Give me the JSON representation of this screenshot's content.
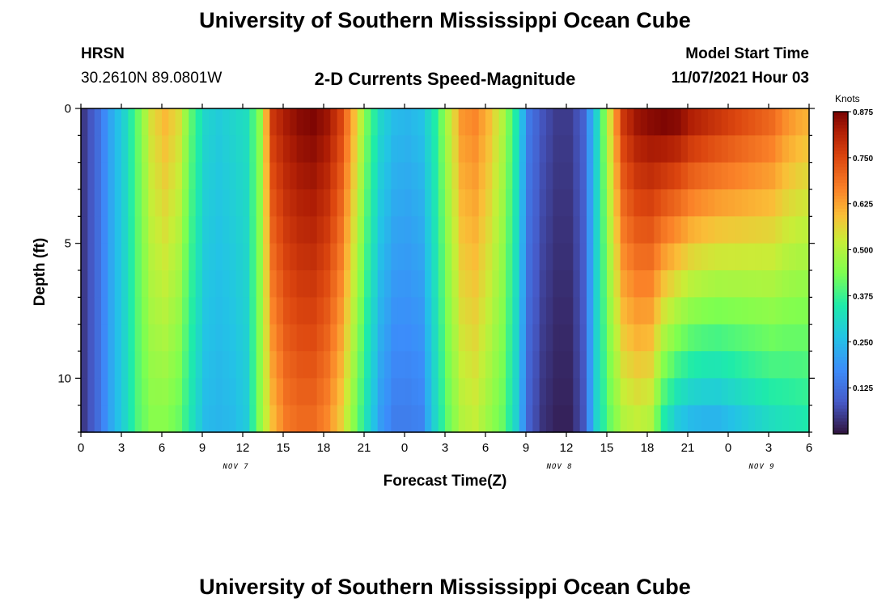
{
  "header": {
    "title": "University of Southern Mississippi Ocean Cube",
    "station": "HRSN",
    "coords": "30.2610N  89.0801W",
    "subtitle": "2-D Currents Speed-Magnitude",
    "model_start_label": "Model Start Time",
    "model_start_value": "11/07/2021 Hour 03"
  },
  "footer": {
    "title": "University of Southern Mississippi Ocean Cube"
  },
  "chart_data": {
    "type": "heatmap",
    "title": "2-D Currents Speed-Magnitude",
    "xlabel": "Forecast Time(Z)",
    "ylabel": "Depth (ft)",
    "x_ticks": [
      "0",
      "3",
      "6",
      "9",
      "12",
      "15",
      "18",
      "21",
      "0",
      "3",
      "6",
      "9",
      "12",
      "15",
      "18",
      "21",
      "0",
      "3",
      "6"
    ],
    "date_labels": [
      {
        "text": "NOV 7",
        "hour": 11.5
      },
      {
        "text": "NOV 8",
        "hour": 35.5
      },
      {
        "text": "NOV 9",
        "hour": 50.5
      }
    ],
    "x_range_hours": [
      0,
      54
    ],
    "y_ticks": [
      "0",
      "5",
      "10"
    ],
    "y_range_ft": [
      0,
      12
    ],
    "y_reversed": true,
    "colorbar": {
      "label": "Knots",
      "ticks": [
        "0.125",
        "0.250",
        "0.375",
        "0.500",
        "0.625",
        "0.750",
        "0.875"
      ],
      "range": [
        0.0,
        0.875
      ]
    },
    "depth_levels_ft": [
      0.5,
      1.5,
      2.5,
      3.5,
      4.5,
      5.5,
      6.5,
      7.5,
      8.5,
      9.5,
      10.5,
      11.5
    ],
    "surface_profile_hours": [
      0,
      1,
      2,
      3,
      4,
      5,
      6,
      7,
      8,
      9,
      10,
      11,
      12,
      13,
      14,
      15,
      16,
      17,
      18,
      19,
      20,
      21,
      22,
      23,
      24,
      25,
      26,
      27,
      28,
      29,
      30,
      31,
      32,
      33,
      34,
      35,
      36,
      37,
      38,
      39,
      40,
      41,
      42,
      43,
      44,
      45,
      46,
      47,
      48,
      49,
      50,
      51,
      52,
      53,
      54
    ],
    "surface_profile_knots": [
      0.05,
      0.12,
      0.22,
      0.3,
      0.42,
      0.55,
      0.6,
      0.55,
      0.4,
      0.3,
      0.28,
      0.3,
      0.32,
      0.45,
      0.78,
      0.83,
      0.86,
      0.87,
      0.84,
      0.76,
      0.6,
      0.42,
      0.3,
      0.25,
      0.24,
      0.26,
      0.35,
      0.5,
      0.64,
      0.66,
      0.6,
      0.5,
      0.35,
      0.14,
      0.08,
      0.05,
      0.05,
      0.1,
      0.3,
      0.55,
      0.78,
      0.84,
      0.86,
      0.87,
      0.86,
      0.82,
      0.8,
      0.78,
      0.76,
      0.74,
      0.72,
      0.7,
      0.65,
      0.62,
      0.6
    ],
    "deep_profile_knots": [
      0.05,
      0.12,
      0.22,
      0.3,
      0.4,
      0.45,
      0.45,
      0.42,
      0.33,
      0.25,
      0.24,
      0.25,
      0.28,
      0.45,
      0.6,
      0.68,
      0.7,
      0.7,
      0.66,
      0.58,
      0.45,
      0.32,
      0.2,
      0.15,
      0.15,
      0.16,
      0.3,
      0.42,
      0.5,
      0.52,
      0.47,
      0.42,
      0.3,
      0.1,
      0.04,
      0.02,
      0.02,
      0.08,
      0.3,
      0.42,
      0.5,
      0.52,
      0.5,
      0.35,
      0.28,
      0.25,
      0.24,
      0.24,
      0.26,
      0.28,
      0.3,
      0.32,
      0.33,
      0.34,
      0.35
    ]
  }
}
